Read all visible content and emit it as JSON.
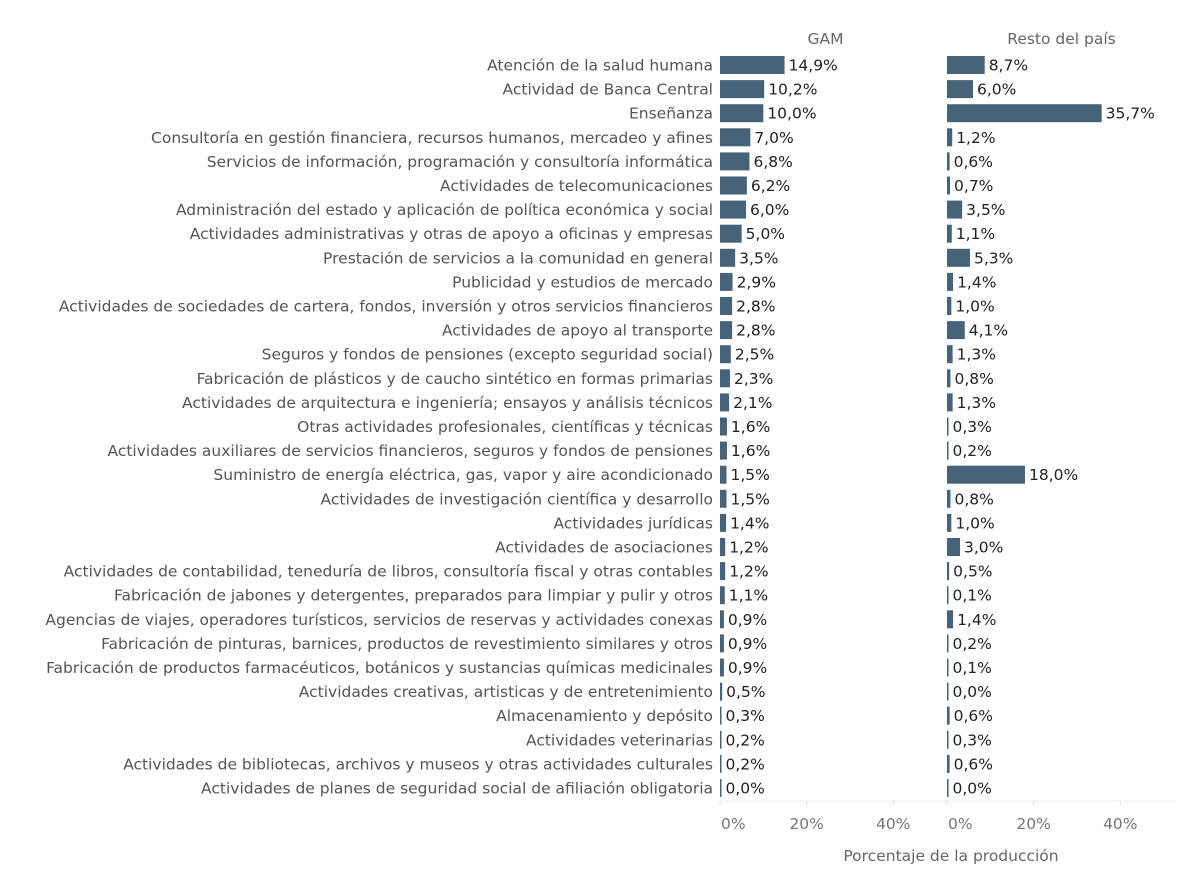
{
  "chart_data": {
    "type": "bar",
    "orientation": "horizontal",
    "xlabel": "Porcentaje de la producción",
    "xlim": [
      0,
      50
    ],
    "xticks": [
      "0%",
      "20%",
      "40%"
    ],
    "bar_color": "#46637a",
    "categories": [
      "Atención de la salud humana",
      "Actividad de Banca Central",
      "Enseñanza",
      "Consultoría en gestión financiera, recursos humanos, mercadeo y afines",
      "Servicios de información, programación y consultoría informática",
      "Actividades de telecomunicaciones",
      "Administración del estado y aplicación de política económica y social",
      "Actividades administrativas y otras de apoyo a oficinas y empresas",
      "Prestación de servicios a la comunidad en general",
      "Publicidad y estudios de mercado",
      "Actividades de sociedades de cartera, fondos, inversión y otros servicios financieros",
      "Actividades de apoyo al transporte",
      "Seguros y fondos de pensiones (excepto seguridad social)",
      "Fabricación de plásticos y de caucho sintético en formas primarias",
      "Actividades de arquitectura e ingeniería; ensayos y análisis técnicos",
      "Otras actividades profesionales, científicas y técnicas",
      "Actividades auxiliares de servicios financieros, seguros y fondos de pensiones",
      "Suministro de energía eléctrica, gas, vapor y aire acondicionado",
      "Actividades de investigación científica y desarrollo",
      "Actividades jurídicas",
      "Actividades de asociaciones",
      "Actividades de contabilidad, teneduría de libros, consultoría fiscal y otras contables",
      "Fabricación de jabones y detergentes, preparados para limpiar y pulir y otros",
      "Agencias de viajes, operadores turísticos, servicios de reservas y actividades conexas",
      "Fabricación de pinturas, barnices, productos de revestimiento similares y otros",
      "Fabricación de productos farmacéuticos, botánicos y sustancias químicas medicinales",
      "Actividades creativas, artisticas y de entretenimiento",
      "Almacenamiento y depósito",
      "Actividades veterinarias",
      "Actividades de bibliotecas, archivos y museos y otras actividades culturales",
      "Actividades de planes de seguridad social de afiliación obligatoria"
    ],
    "series": [
      {
        "name": "GAM",
        "values": [
          14.9,
          10.2,
          10.0,
          7.0,
          6.8,
          6.2,
          6.0,
          5.0,
          3.5,
          2.9,
          2.8,
          2.8,
          2.5,
          2.3,
          2.1,
          1.6,
          1.6,
          1.5,
          1.5,
          1.4,
          1.2,
          1.2,
          1.1,
          0.9,
          0.9,
          0.9,
          0.5,
          0.3,
          0.2,
          0.2,
          0.0
        ]
      },
      {
        "name": "Resto del país",
        "values": [
          8.7,
          6.0,
          35.7,
          1.2,
          0.6,
          0.7,
          3.5,
          1.1,
          5.3,
          1.4,
          1.0,
          4.1,
          1.3,
          0.8,
          1.3,
          0.3,
          0.2,
          18.0,
          0.8,
          1.0,
          3.0,
          0.5,
          0.1,
          1.4,
          0.2,
          0.1,
          0.0,
          0.6,
          0.3,
          0.6,
          0.0
        ]
      }
    ]
  }
}
